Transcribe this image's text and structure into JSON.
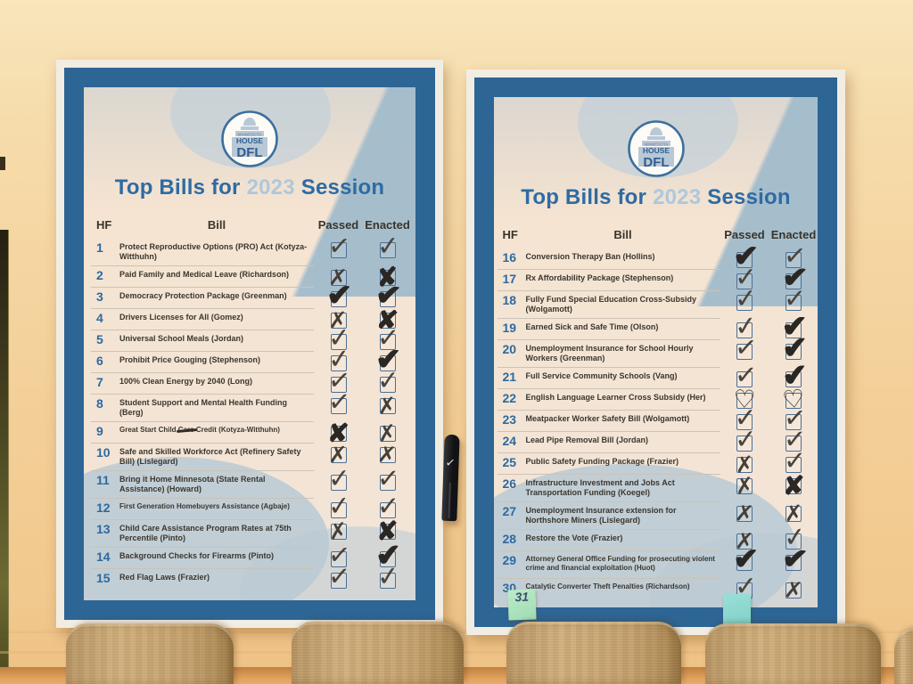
{
  "colors": {
    "poster_blue": "#2d6594",
    "title_blue": "#2e6ba4",
    "year_blue": "#aec8dd",
    "number_blue": "#2d6aa0",
    "cream": "#f5e3d0",
    "ink_pen": "#4a443c",
    "ink_marker": "#2b2723",
    "wall": "#f4d29c",
    "sticky_green": "#a8e0bb",
    "sticky_teal": "#8cd8d0"
  },
  "scene": {
    "sticky_note_text": "31"
  },
  "posters": [
    {
      "logo": {
        "line1": "MINNESOTA",
        "line2": "HOUSE",
        "line3": "DFL"
      },
      "title": {
        "prefix": "Top Bills for",
        "year": "2023",
        "suffix": "Session"
      },
      "columns": {
        "hf": "HF",
        "bill": "Bill",
        "passed": "Passed",
        "enacted": "Enacted"
      },
      "rows": [
        {
          "hf": "1",
          "bill": "Protect Reproductive Options (PRO) Act (Kotyza-Witthuhn)",
          "lines": 2,
          "passed": "check",
          "enacted": "check"
        },
        {
          "hf": "2",
          "bill": "Paid Family and Medical Leave (Richardson)",
          "lines": 1,
          "passed": "x",
          "enacted": "x-bold"
        },
        {
          "hf": "3",
          "bill": "Democracy Protection Package (Greenman)",
          "lines": 1,
          "passed": "check-bold",
          "enacted": "check-bold"
        },
        {
          "hf": "4",
          "bill": "Drivers Licenses for All (Gomez)",
          "lines": 1,
          "passed": "x",
          "enacted": "x-bold"
        },
        {
          "hf": "5",
          "bill": "Universal School Meals (Jordan)",
          "lines": 1,
          "passed": "check",
          "enacted": "check"
        },
        {
          "hf": "6",
          "bill": "Prohibit Price Gouging (Stephenson)",
          "lines": 1,
          "passed": "check",
          "enacted": "check-bold"
        },
        {
          "hf": "7",
          "bill": "100% Clean Energy by 2040 (Long)",
          "lines": 1,
          "passed": "check",
          "enacted": "check"
        },
        {
          "hf": "8",
          "bill": "Student Support and Mental Health Funding (Berg)",
          "lines": 2,
          "passed": "check",
          "enacted": "x"
        },
        {
          "hf": "9",
          "bill": "Great Start Child Care Credit (Kotyza-Witthuhn)",
          "lines": 1,
          "small": true,
          "struck": "Care",
          "passed": "x-bold",
          "enacted": "x"
        },
        {
          "hf": "10",
          "bill": "Safe and Skilled Workforce Act (Refinery Safety Bill) (Lislegard)",
          "lines": 2,
          "passed": "x",
          "enacted": "x"
        },
        {
          "hf": "11",
          "bill": "Bring it Home Minnesota (State Rental Assistance) (Howard)",
          "lines": 2,
          "passed": "check",
          "enacted": "check"
        },
        {
          "hf": "12",
          "bill": "First Generation Homebuyers Assistance (Agbaje)",
          "lines": 1,
          "small": true,
          "passed": "check",
          "enacted": "check"
        },
        {
          "hf": "13",
          "bill": "Child Care Assistance Program Rates at 75th Percentile (Pinto)",
          "lines": 2,
          "passed": "x",
          "enacted": "x-bold"
        },
        {
          "hf": "14",
          "bill": "Background Checks for Firearms (Pinto)",
          "lines": 1,
          "passed": "check",
          "enacted": "check-bold"
        },
        {
          "hf": "15",
          "bill": "Red Flag Laws (Frazier)",
          "lines": 1,
          "passed": "check",
          "enacted": "check"
        }
      ]
    },
    {
      "logo": {
        "line1": "MINNESOTA",
        "line2": "HOUSE",
        "line3": "DFL"
      },
      "title": {
        "prefix": "Top Bills for",
        "year": "2023",
        "suffix": "Session"
      },
      "columns": {
        "hf": "HF",
        "bill": "Bill",
        "passed": "Passed",
        "enacted": "Enacted"
      },
      "rows": [
        {
          "hf": "16",
          "bill": "Conversion Therapy Ban (Hollins)",
          "lines": 1,
          "passed": "check-bold",
          "enacted": "check"
        },
        {
          "hf": "17",
          "bill": "Rx Affordability Package (Stephenson)",
          "lines": 1,
          "passed": "check",
          "enacted": "check-bold"
        },
        {
          "hf": "18",
          "bill": "Fully Fund Special Education Cross-Subsidy (Wolgamott)",
          "lines": 2,
          "passed": "check",
          "enacted": "check"
        },
        {
          "hf": "19",
          "bill": "Earned Sick and Safe Time (Olson)",
          "lines": 1,
          "passed": "check",
          "enacted": "check-bold"
        },
        {
          "hf": "20",
          "bill": "Unemployment Insurance for School Hourly Workers (Greenman)",
          "lines": 2,
          "passed": "check",
          "enacted": "check-bold"
        },
        {
          "hf": "21",
          "bill": "Full Service Community Schools (Vang)",
          "lines": 1,
          "passed": "check",
          "enacted": "check-bold"
        },
        {
          "hf": "22",
          "bill": "English Language Learner Cross Subsidy (Her)",
          "lines": 1,
          "passed": "heart",
          "enacted": "heart"
        },
        {
          "hf": "23",
          "bill": "Meatpacker Worker Safety Bill (Wolgamott)",
          "lines": 1,
          "passed": "check",
          "enacted": "check"
        },
        {
          "hf": "24",
          "bill": "Lead Pipe Removal Bill (Jordan)",
          "lines": 1,
          "passed": "check",
          "enacted": "check"
        },
        {
          "hf": "25",
          "bill": "Public Safety Funding Package (Frazier)",
          "lines": 1,
          "passed": "x",
          "enacted": "check"
        },
        {
          "hf": "26",
          "bill": "Infrastructure Investment and Jobs Act Transportation Funding (Koegel)",
          "lines": 2,
          "passed": "x",
          "enacted": "x-bold"
        },
        {
          "hf": "27",
          "bill": "Unemployment Insurance extension for Northshore Miners (Lislegard)",
          "lines": 2,
          "passed": "x",
          "enacted": "x"
        },
        {
          "hf": "28",
          "bill": "Restore the Vote (Frazier)",
          "lines": 1,
          "passed": "x",
          "enacted": "check"
        },
        {
          "hf": "29",
          "bill": "Attorney General Office Funding for prosecuting violent crime and financial exploitation (Huot)",
          "lines": 2,
          "small": true,
          "passed": "check-bold",
          "enacted": "check-bold"
        },
        {
          "hf": "30",
          "bill": "Catalytic Converter Theft Penalties (Richardson)",
          "lines": 1,
          "small": true,
          "passed": "check",
          "enacted": "x"
        }
      ]
    }
  ]
}
